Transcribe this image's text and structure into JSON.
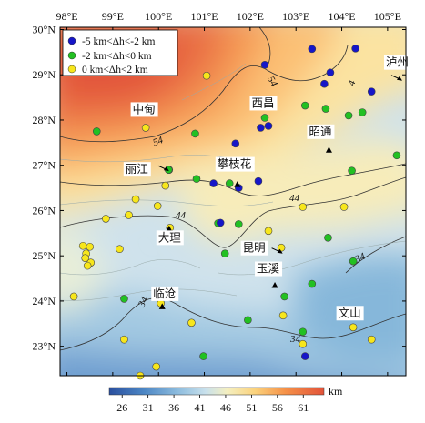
{
  "map": {
    "lon_ticks": [
      "98°E",
      "99°E",
      "100°E",
      "101°E",
      "102°E",
      "103°E",
      "104°E",
      "105°E"
    ],
    "lat_ticks": [
      "30°N",
      "29°N",
      "28°N",
      "27°N",
      "26°N",
      "25°N",
      "24°N",
      "23°N"
    ],
    "lon_range": [
      97.85,
      105.4
    ],
    "lat_range": [
      22.35,
      30.05
    ],
    "contour_labels": [
      "54",
      "54",
      "44",
      "44",
      "34",
      "34",
      "34",
      "4"
    ]
  },
  "legend": {
    "items": [
      {
        "label": "-5 km<Δh<-2 km",
        "color": "#1616c8"
      },
      {
        "label": "-2 km<Δh<0 km",
        "color": "#22c022"
      },
      {
        "label": "0 km<Δh<2 km",
        "color": "#f7e61c"
      }
    ]
  },
  "cities": [
    {
      "name": "泸州",
      "lon": 105.32,
      "lat": 28.87,
      "marker": "arrow"
    },
    {
      "name": "中甸",
      "lon": 99.71,
      "lat": 27.83,
      "marker": "dot"
    },
    {
      "name": "西昌",
      "lon": 102.27,
      "lat": 27.89,
      "marker": "dot"
    },
    {
      "name": "昭通",
      "lon": 103.72,
      "lat": 27.34,
      "marker": "triangle"
    },
    {
      "name": "丽江",
      "lon": 100.23,
      "lat": 26.87,
      "marker": "arrow"
    },
    {
      "name": "攀枝花",
      "lon": 101.72,
      "lat": 26.58,
      "marker": "triangle"
    },
    {
      "name": "大理",
      "lon": 100.23,
      "lat": 25.6,
      "marker": "triangle"
    },
    {
      "name": "昆明",
      "lon": 102.71,
      "lat": 25.05,
      "marker": "arrow"
    },
    {
      "name": "玉溪",
      "lon": 102.54,
      "lat": 24.35,
      "marker": "triangle"
    },
    {
      "name": "临沧",
      "lon": 100.08,
      "lat": 23.88,
      "marker": "triangle"
    },
    {
      "name": "文山",
      "lon": 104.24,
      "lat": 23.37,
      "marker": "dot"
    }
  ],
  "stations": {
    "blue": [
      [
        102.32,
        29.22
      ],
      [
        103.35,
        29.57
      ],
      [
        104.3,
        29.58
      ],
      [
        103.75,
        29.05
      ],
      [
        105.35,
        29.35
      ],
      [
        103.62,
        28.8
      ],
      [
        104.65,
        28.63
      ],
      [
        102.17,
        28.32
      ],
      [
        102.23,
        27.83
      ],
      [
        102.4,
        27.87
      ],
      [
        101.68,
        27.48
      ],
      [
        101.2,
        26.6
      ],
      [
        101.75,
        26.5
      ],
      [
        102.18,
        26.65
      ],
      [
        101.35,
        25.73
      ],
      [
        103.2,
        22.78
      ]
    ],
    "green": [
      [
        98.65,
        27.75
      ],
      [
        100.8,
        27.7
      ],
      [
        102.32,
        28.05
      ],
      [
        103.2,
        28.32
      ],
      [
        103.65,
        28.25
      ],
      [
        104.15,
        28.1
      ],
      [
        104.45,
        28.17
      ],
      [
        105.2,
        27.22
      ],
      [
        100.22,
        26.9
      ],
      [
        100.83,
        26.7
      ],
      [
        101.55,
        26.6
      ],
      [
        104.22,
        26.88
      ],
      [
        101.3,
        25.72
      ],
      [
        101.75,
        25.7
      ],
      [
        101.45,
        25.05
      ],
      [
        103.7,
        25.4
      ],
      [
        104.25,
        24.88
      ],
      [
        102.2,
        24.7
      ],
      [
        102.75,
        24.1
      ],
      [
        103.35,
        24.38
      ],
      [
        99.25,
        24.05
      ],
      [
        101.95,
        23.58
      ],
      [
        103.15,
        23.32
      ],
      [
        100.98,
        22.78
      ]
    ],
    "yellow": [
      [
        101.05,
        28.98
      ],
      [
        99.72,
        27.83
      ],
      [
        100.23,
        26.9
      ],
      [
        100.15,
        26.55
      ],
      [
        99.5,
        26.25
      ],
      [
        99.98,
        26.1
      ],
      [
        98.85,
        25.82
      ],
      [
        99.35,
        25.9
      ],
      [
        100.25,
        25.62
      ],
      [
        98.35,
        25.22
      ],
      [
        98.5,
        25.2
      ],
      [
        98.42,
        25.05
      ],
      [
        98.4,
        24.95
      ],
      [
        98.52,
        24.85
      ],
      [
        98.45,
        24.78
      ],
      [
        99.15,
        25.15
      ],
      [
        102.4,
        25.55
      ],
      [
        102.68,
        25.18
      ],
      [
        103.15,
        26.08
      ],
      [
        104.05,
        26.08
      ],
      [
        100.05,
        23.95
      ],
      [
        100.72,
        23.52
      ],
      [
        98.15,
        24.1
      ],
      [
        99.25,
        23.15
      ],
      [
        102.72,
        23.68
      ],
      [
        99.95,
        22.55
      ],
      [
        99.6,
        22.35
      ],
      [
        103.15,
        23.05
      ],
      [
        104.25,
        23.42
      ],
      [
        104.65,
        23.15
      ]
    ]
  },
  "colorbar": {
    "ticks": [
      "26",
      "31",
      "36",
      "41",
      "46",
      "51",
      "56",
      "61"
    ],
    "unit": "km",
    "range": [
      23.5,
      65
    ]
  }
}
